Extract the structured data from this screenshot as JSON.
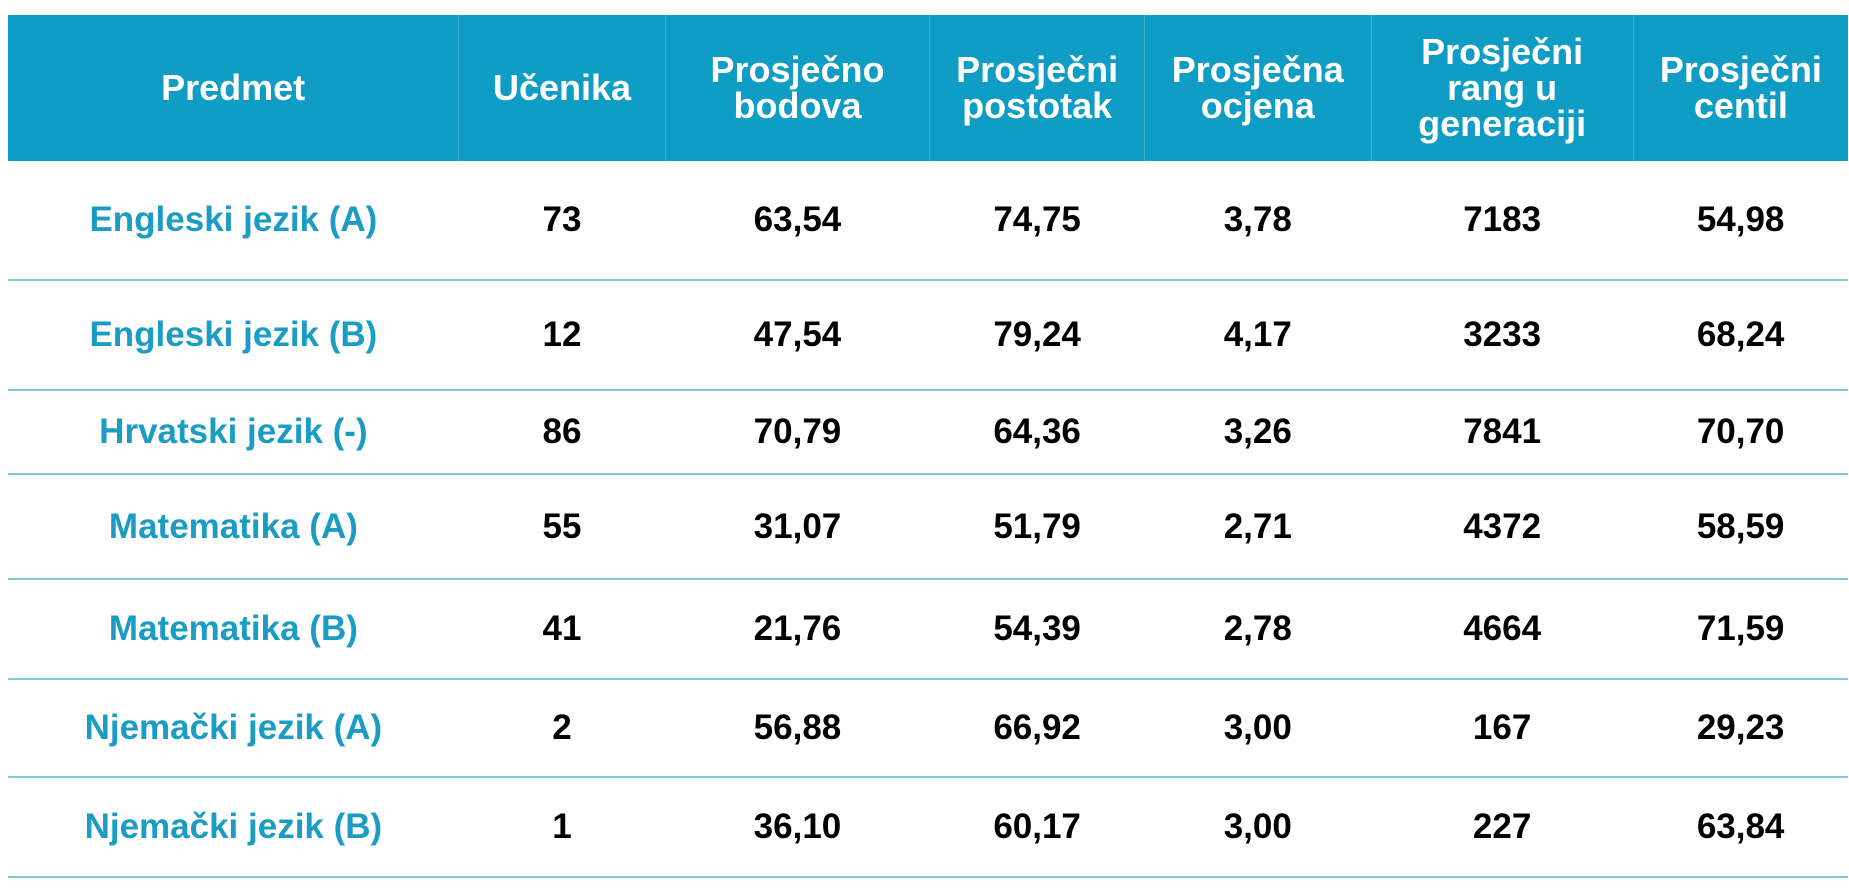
{
  "table": {
    "headers": [
      "Predmet",
      "Učenika",
      "Prosječno bodova",
      "Prosječni postotak",
      "Prosječna ocjena",
      "Prosječni rang u generaciji",
      "Prosječni centil"
    ],
    "rows": [
      [
        "Engleski jezik (A)",
        "73",
        "63,54",
        "74,75",
        "3,78",
        "7183",
        "54,98"
      ],
      [
        "Engleski jezik (B)",
        "12",
        "47,54",
        "79,24",
        "4,17",
        "3233",
        "68,24"
      ],
      [
        "Hrvatski jezik (-)",
        "86",
        "70,79",
        "64,36",
        "3,26",
        "7841",
        "70,70"
      ],
      [
        "Matematika (A)",
        "55",
        "31,07",
        "51,79",
        "2,71",
        "4372",
        "58,59"
      ],
      [
        "Matematika (B)",
        "41",
        "21,76",
        "54,39",
        "2,78",
        "4664",
        "71,59"
      ],
      [
        "Njemački jezik (A)",
        "2",
        "56,88",
        "66,92",
        "3,00",
        "167",
        "29,23"
      ],
      [
        "Njemački jezik (B)",
        "1",
        "36,10",
        "60,17",
        "3,00",
        "227",
        "63,84"
      ]
    ]
  },
  "colors": {
    "header_bg": "#0f9dc6",
    "header_text": "#ffffff",
    "subject_text": "#1a9cc4",
    "row_divider": "#7fc9df"
  }
}
